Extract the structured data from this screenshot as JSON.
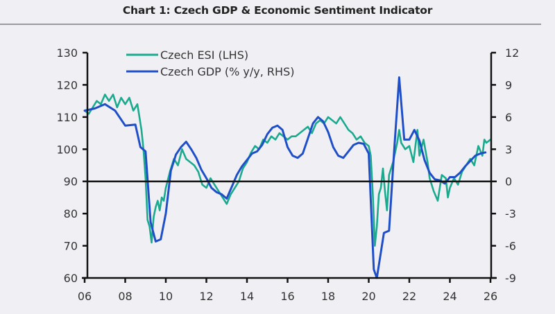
{
  "title": "Chart 1: Czech GDP & Economic Sentiment Indicator",
  "chart_data": {
    "type": "line",
    "title": "Chart 1: Czech GDP & Economic Sentiment Indicator",
    "xlabel": "",
    "x_ticks": [
      "06",
      "08",
      "10",
      "12",
      "14",
      "16",
      "18",
      "20",
      "22",
      "24",
      "26"
    ],
    "x_range": [
      2006,
      2026
    ],
    "left_axis": {
      "label": "Czech ESI (LHS)",
      "ylim": [
        60,
        130
      ],
      "ticks": [
        "130",
        "120",
        "110",
        "100",
        "90",
        "80",
        "70",
        "60"
      ]
    },
    "right_axis": {
      "label": "Czech GDP (% y/y, RHS)",
      "ylim": [
        -9,
        12
      ],
      "ticks": [
        "12",
        "9",
        "6",
        "3",
        "0",
        "-3",
        "-6",
        "-9"
      ]
    },
    "reference_line": {
      "axis": "right",
      "value": 0
    },
    "legend": {
      "placement": "top-left",
      "entries": [
        "Czech ESI (LHS)",
        "Czech GDP (% y/y, RHS)"
      ]
    },
    "grid": false,
    "series": [
      {
        "name": "Czech ESI (LHS)",
        "axis": "left",
        "color": "#1aaa8e",
        "points": [
          [
            2006.0,
            112
          ],
          [
            2006.2,
            111
          ],
          [
            2006.4,
            113
          ],
          [
            2006.6,
            115
          ],
          [
            2006.8,
            114
          ],
          [
            2007.0,
            117
          ],
          [
            2007.2,
            115
          ],
          [
            2007.4,
            117
          ],
          [
            2007.6,
            113
          ],
          [
            2007.8,
            116
          ],
          [
            2008.0,
            114
          ],
          [
            2008.2,
            116
          ],
          [
            2008.4,
            112
          ],
          [
            2008.6,
            114
          ],
          [
            2008.7,
            110
          ],
          [
            2008.8,
            106
          ],
          [
            2008.9,
            100
          ],
          [
            2009.0,
            91
          ],
          [
            2009.1,
            78
          ],
          [
            2009.2,
            76
          ],
          [
            2009.3,
            71
          ],
          [
            2009.4,
            79
          ],
          [
            2009.5,
            82
          ],
          [
            2009.6,
            84
          ],
          [
            2009.7,
            81
          ],
          [
            2009.8,
            85
          ],
          [
            2009.9,
            84
          ],
          [
            2010.0,
            88
          ],
          [
            2010.2,
            93
          ],
          [
            2010.4,
            97
          ],
          [
            2010.6,
            95
          ],
          [
            2010.8,
            100
          ],
          [
            2011.0,
            97
          ],
          [
            2011.2,
            96
          ],
          [
            2011.4,
            95
          ],
          [
            2011.6,
            93
          ],
          [
            2011.8,
            89
          ],
          [
            2012.0,
            88
          ],
          [
            2012.2,
            91
          ],
          [
            2012.4,
            89
          ],
          [
            2012.6,
            87
          ],
          [
            2012.8,
            85
          ],
          [
            2013.0,
            83
          ],
          [
            2013.2,
            86
          ],
          [
            2013.4,
            88
          ],
          [
            2013.6,
            90
          ],
          [
            2013.8,
            94
          ],
          [
            2014.0,
            96
          ],
          [
            2014.2,
            99
          ],
          [
            2014.4,
            101
          ],
          [
            2014.6,
            100
          ],
          [
            2014.8,
            103
          ],
          [
            2015.0,
            102
          ],
          [
            2015.2,
            104
          ],
          [
            2015.4,
            103
          ],
          [
            2015.6,
            105
          ],
          [
            2015.8,
            104
          ],
          [
            2016.0,
            103
          ],
          [
            2016.2,
            104
          ],
          [
            2016.4,
            104
          ],
          [
            2016.6,
            105
          ],
          [
            2016.8,
            106
          ],
          [
            2017.0,
            107
          ],
          [
            2017.2,
            105
          ],
          [
            2017.4,
            108
          ],
          [
            2017.6,
            109
          ],
          [
            2017.8,
            108
          ],
          [
            2018.0,
            110
          ],
          [
            2018.2,
            109
          ],
          [
            2018.4,
            108
          ],
          [
            2018.6,
            110
          ],
          [
            2018.8,
            108
          ],
          [
            2019.0,
            106
          ],
          [
            2019.2,
            105
          ],
          [
            2019.4,
            103
          ],
          [
            2019.6,
            104
          ],
          [
            2019.8,
            102
          ],
          [
            2020.0,
            101
          ],
          [
            2020.1,
            98
          ],
          [
            2020.2,
            86
          ],
          [
            2020.3,
            70
          ],
          [
            2020.4,
            76
          ],
          [
            2020.5,
            86
          ],
          [
            2020.6,
            88
          ],
          [
            2020.7,
            94
          ],
          [
            2020.8,
            87
          ],
          [
            2020.9,
            81
          ],
          [
            2021.0,
            92
          ],
          [
            2021.2,
            96
          ],
          [
            2021.4,
            102
          ],
          [
            2021.5,
            106
          ],
          [
            2021.6,
            102
          ],
          [
            2021.8,
            100
          ],
          [
            2022.0,
            101
          ],
          [
            2022.2,
            96
          ],
          [
            2022.4,
            106
          ],
          [
            2022.5,
            98
          ],
          [
            2022.7,
            103
          ],
          [
            2022.9,
            96
          ],
          [
            2023.0,
            91
          ],
          [
            2023.2,
            87
          ],
          [
            2023.4,
            84
          ],
          [
            2023.6,
            92
          ],
          [
            2023.8,
            91
          ],
          [
            2023.9,
            85
          ],
          [
            2024.0,
            88
          ],
          [
            2024.2,
            91
          ],
          [
            2024.4,
            89
          ],
          [
            2024.6,
            93
          ],
          [
            2024.8,
            95
          ],
          [
            2025.0,
            97
          ],
          [
            2025.2,
            95
          ],
          [
            2025.4,
            101
          ],
          [
            2025.6,
            98
          ],
          [
            2025.7,
            103
          ],
          [
            2025.8,
            102
          ],
          [
            2026.0,
            103
          ]
        ]
      },
      {
        "name": "Czech GDP (% y/y, RHS)",
        "axis": "right",
        "color": "#1e4fc8",
        "points": [
          [
            2006.0,
            6.6
          ],
          [
            2006.5,
            6.8
          ],
          [
            2007.0,
            7.2
          ],
          [
            2007.5,
            6.6
          ],
          [
            2008.0,
            5.2
          ],
          [
            2008.5,
            5.3
          ],
          [
            2008.75,
            3.2
          ],
          [
            2009.0,
            2.8
          ],
          [
            2009.25,
            -3.8
          ],
          [
            2009.5,
            -5.6
          ],
          [
            2009.75,
            -5.4
          ],
          [
            2010.0,
            -3.0
          ],
          [
            2010.25,
            1.0
          ],
          [
            2010.5,
            2.5
          ],
          [
            2010.75,
            3.2
          ],
          [
            2011.0,
            3.7
          ],
          [
            2011.25,
            3.0
          ],
          [
            2011.5,
            2.2
          ],
          [
            2011.75,
            1.1
          ],
          [
            2012.0,
            0.3
          ],
          [
            2012.25,
            -0.6
          ],
          [
            2012.5,
            -1.0
          ],
          [
            2012.75,
            -1.2
          ],
          [
            2013.0,
            -1.6
          ],
          [
            2013.25,
            -0.5
          ],
          [
            2013.5,
            0.6
          ],
          [
            2013.75,
            1.4
          ],
          [
            2014.0,
            2.0
          ],
          [
            2014.25,
            2.6
          ],
          [
            2014.5,
            2.8
          ],
          [
            2014.75,
            3.4
          ],
          [
            2015.0,
            4.4
          ],
          [
            2015.25,
            5.0
          ],
          [
            2015.5,
            5.2
          ],
          [
            2015.75,
            4.8
          ],
          [
            2016.0,
            3.2
          ],
          [
            2016.25,
            2.4
          ],
          [
            2016.5,
            2.2
          ],
          [
            2016.75,
            2.6
          ],
          [
            2017.0,
            4.0
          ],
          [
            2017.25,
            5.4
          ],
          [
            2017.5,
            6.0
          ],
          [
            2017.75,
            5.6
          ],
          [
            2018.0,
            4.6
          ],
          [
            2018.25,
            3.2
          ],
          [
            2018.5,
            2.4
          ],
          [
            2018.75,
            2.2
          ],
          [
            2019.0,
            2.8
          ],
          [
            2019.25,
            3.4
          ],
          [
            2019.5,
            3.6
          ],
          [
            2019.75,
            3.5
          ],
          [
            2020.0,
            2.6
          ],
          [
            2020.25,
            -8.2
          ],
          [
            2020.4,
            -9.0
          ],
          [
            2020.75,
            -4.8
          ],
          [
            2021.0,
            -4.6
          ],
          [
            2021.25,
            2.8
          ],
          [
            2021.5,
            9.7
          ],
          [
            2021.75,
            3.9
          ],
          [
            2022.0,
            3.9
          ],
          [
            2022.25,
            4.8
          ],
          [
            2022.5,
            3.8
          ],
          [
            2022.75,
            2.0
          ],
          [
            2023.0,
            0.8
          ],
          [
            2023.25,
            0.2
          ],
          [
            2023.5,
            0.1
          ],
          [
            2023.75,
            -0.2
          ],
          [
            2024.0,
            0.4
          ],
          [
            2024.25,
            0.4
          ],
          [
            2024.5,
            0.8
          ],
          [
            2024.75,
            1.4
          ],
          [
            2025.0,
            1.9
          ],
          [
            2025.25,
            2.4
          ],
          [
            2025.5,
            2.6
          ],
          [
            2025.75,
            2.7
          ]
        ]
      }
    ]
  }
}
